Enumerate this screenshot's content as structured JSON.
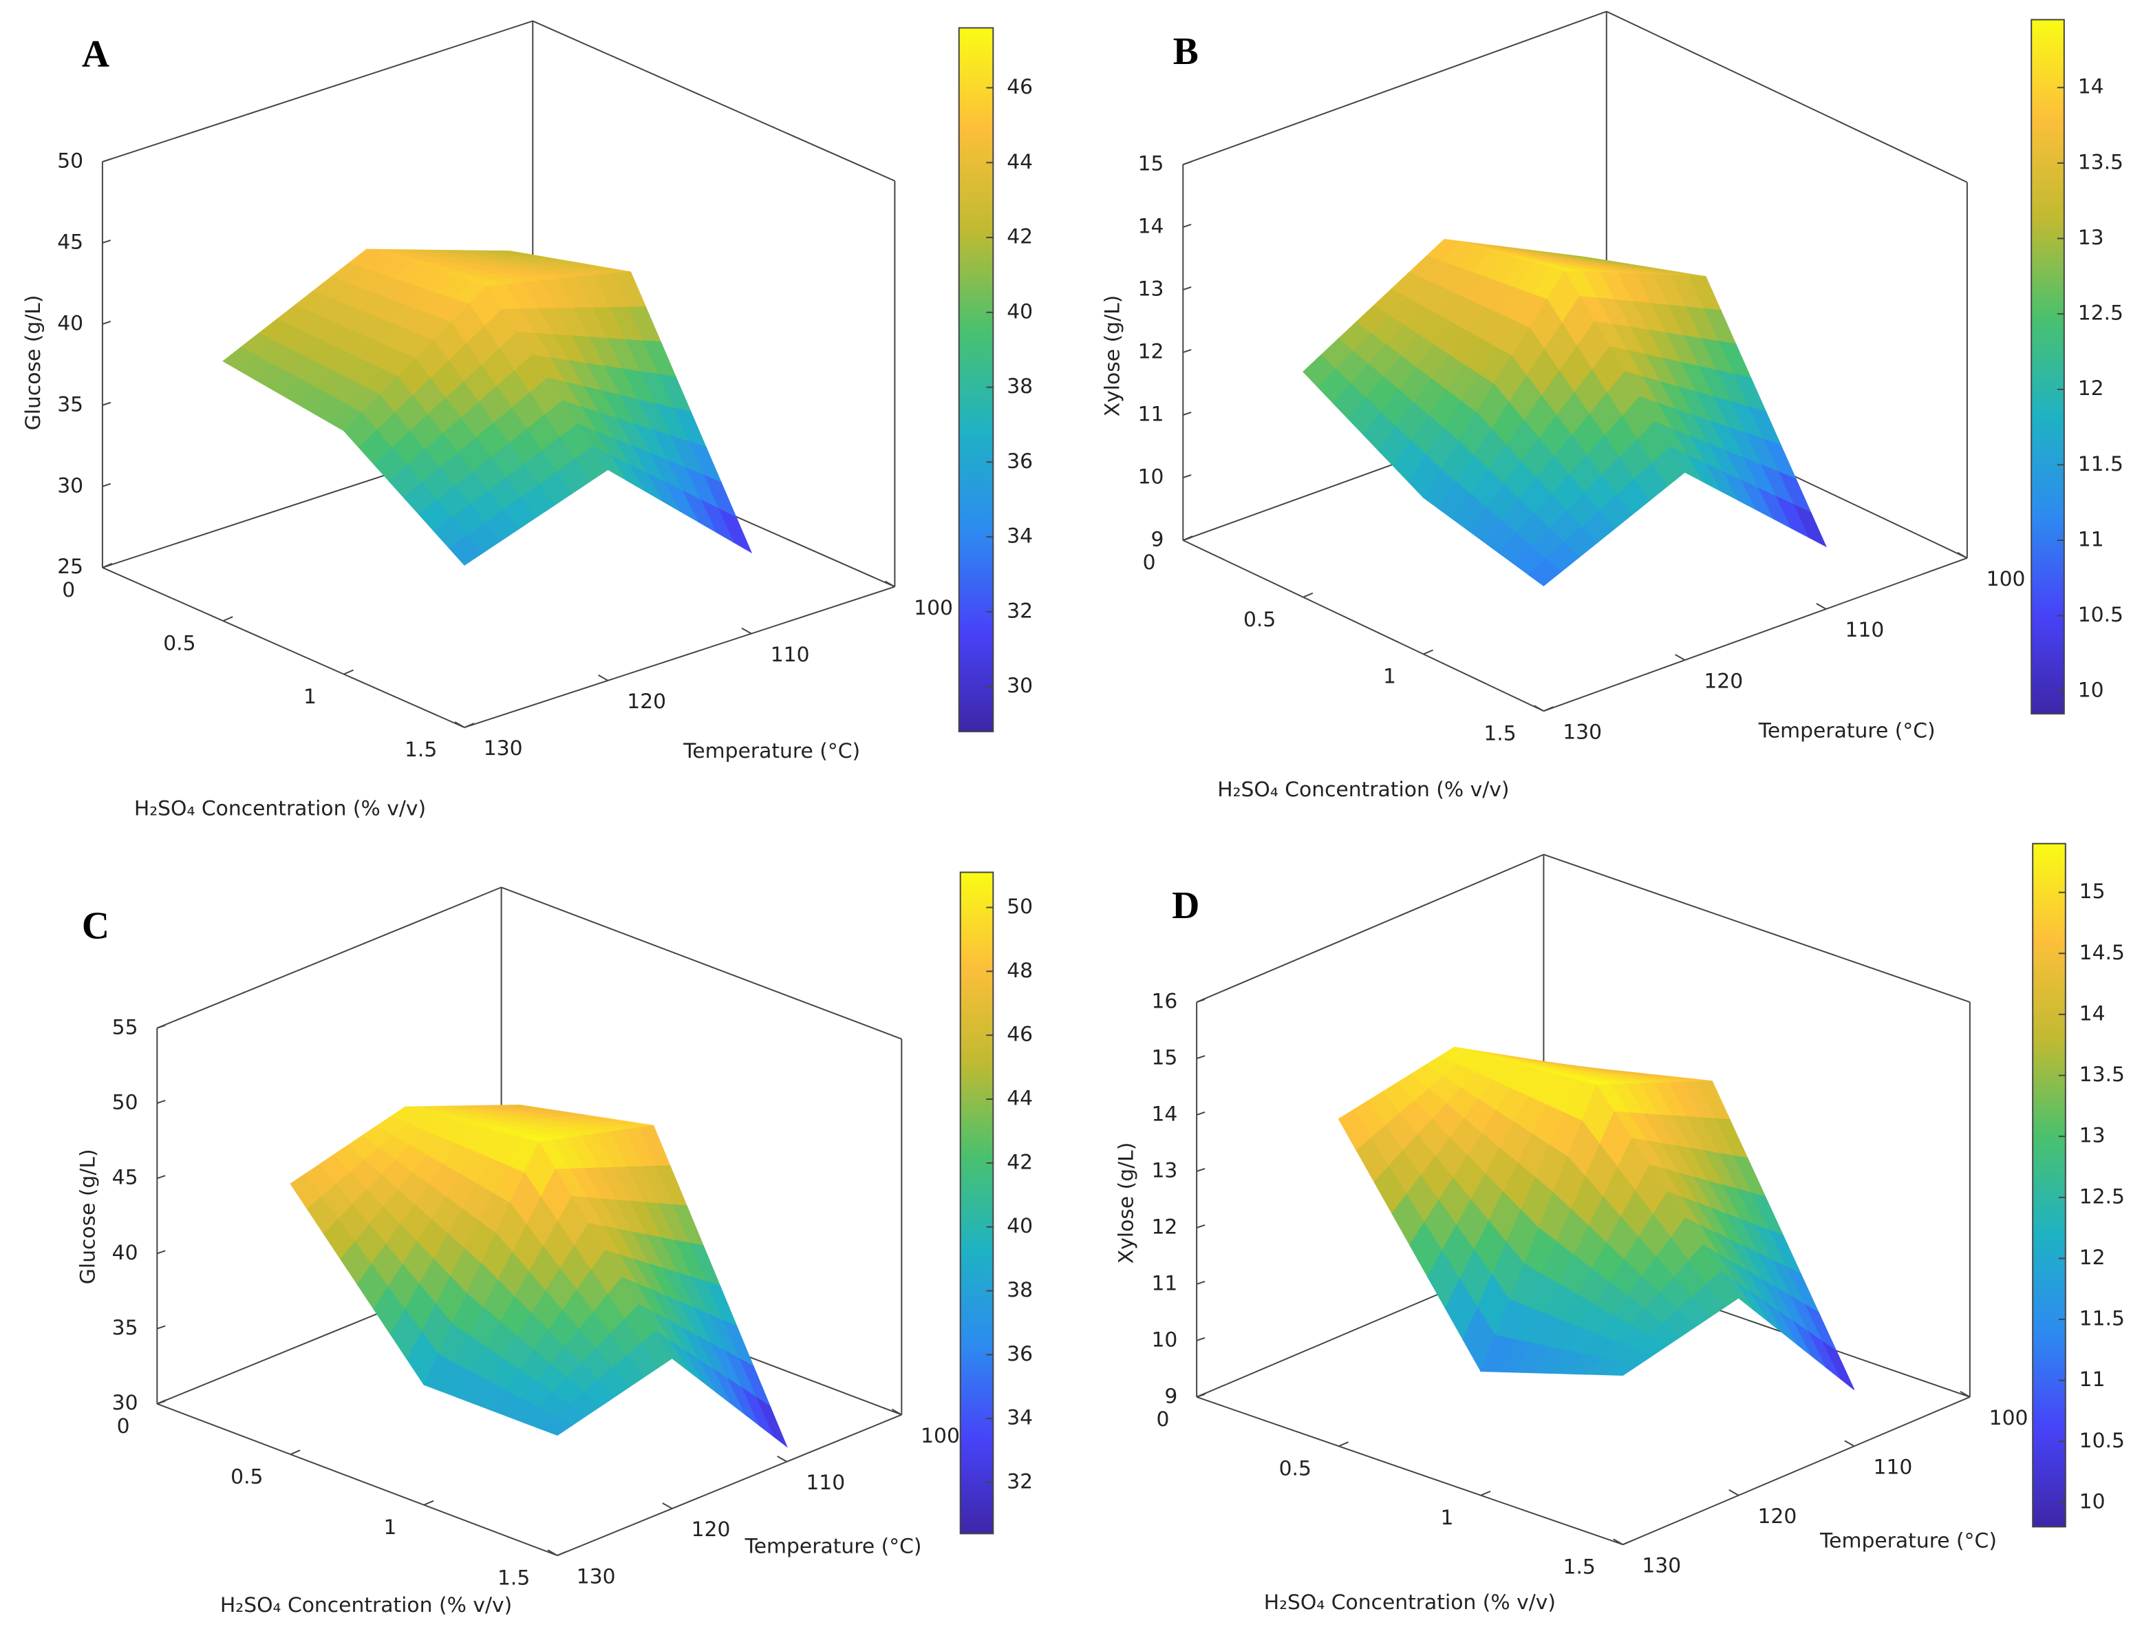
{
  "chart_data": [
    {
      "type": "surface",
      "panel_label": "A",
      "zlabel": "Glucose (g/L)",
      "ylabel": "Temperature (°C)",
      "xlabel": "H₂SO₄ Concentration (% v/v)",
      "x": [
        0.5,
        1,
        1.5
      ],
      "y": [
        110,
        120,
        130
      ],
      "z": [
        [
          42,
          45,
          41
        ],
        [
          44,
          46,
          40
        ],
        [
          30,
          38,
          35
        ]
      ],
      "xlim": [
        0,
        1.5
      ],
      "ylim": [
        100,
        130
      ],
      "zlim": [
        25,
        50
      ],
      "xticks": [
        0,
        0.5,
        1,
        1.5
      ],
      "yticks": [
        100,
        110,
        120,
        130
      ],
      "zticks": [
        25,
        30,
        35,
        40,
        45,
        50
      ],
      "clim": [
        28.8,
        47.6
      ],
      "cticks": [
        30,
        32,
        34,
        36,
        38,
        40,
        42,
        44,
        46
      ],
      "colormap": [
        "#3e26a8",
        "#4743f8",
        "#2d8bf0",
        "#1fb2c3",
        "#4ac16d",
        "#c1ba31",
        "#fcbf3a",
        "#f9fb15"
      ]
    },
    {
      "type": "surface",
      "panel_label": "B",
      "zlabel": "Xylose (g/L)",
      "ylabel": "Temperature (°C)",
      "xlabel": "H₂SO₄ Concentration (% v/v)",
      "x": [
        0.5,
        1,
        1.5
      ],
      "y": [
        110,
        120,
        130
      ],
      "z": [
        [
          12.8,
          13.9,
          12.6
        ],
        [
          13.4,
          14.3,
          11.5
        ],
        [
          10,
          12,
          11
        ]
      ],
      "xlim": [
        0,
        1.5
      ],
      "ylim": [
        100,
        130
      ],
      "zlim": [
        9,
        15
      ],
      "xticks": [
        0,
        0.5,
        1,
        1.5
      ],
      "yticks": [
        100,
        110,
        120,
        130
      ],
      "zticks": [
        9,
        10,
        11,
        12,
        13,
        14,
        15
      ],
      "clim": [
        9.85,
        14.45
      ],
      "cticks": [
        10,
        10.5,
        11,
        11.5,
        12,
        12.5,
        13,
        13.5,
        14
      ],
      "colormap": [
        "#3e26a8",
        "#4743f8",
        "#2d8bf0",
        "#1fb2c3",
        "#4ac16d",
        "#c1ba31",
        "#fcbf3a",
        "#f9fb15"
      ]
    },
    {
      "type": "surface",
      "panel_label": "C",
      "zlabel": "Glucose (g/L)",
      "ylabel": "Temperature (°C)",
      "xlabel": "H₂SO₄ Concentration (% v/v)",
      "x": [
        0.5,
        1,
        1.5
      ],
      "y": [
        110,
        120,
        130
      ],
      "z": [
        [
          47,
          50,
          48
        ],
        [
          49,
          51,
          38
        ],
        [
          31,
          40,
          38
        ]
      ],
      "xlim": [
        0,
        1.5
      ],
      "ylim": [
        100,
        130
      ],
      "zlim": [
        30,
        55
      ],
      "xticks": [
        0,
        0.5,
        1,
        1.5
      ],
      "yticks": [
        100,
        110,
        120,
        130
      ],
      "zticks": [
        30,
        35,
        40,
        45,
        50,
        55
      ],
      "clim": [
        30.4,
        51.1
      ],
      "cticks": [
        32,
        34,
        36,
        38,
        40,
        42,
        44,
        46,
        48,
        50
      ],
      "colormap": [
        "#3e26a8",
        "#4743f8",
        "#2d8bf0",
        "#1fb2c3",
        "#4ac16d",
        "#c1ba31",
        "#fcbf3a",
        "#f9fb15"
      ]
    },
    {
      "type": "surface",
      "panel_label": "D",
      "zlabel": "Xylose (g/L)",
      "ylabel": "Temperature (°C)",
      "xlabel": "H₂SO₄ Concentration (% v/v)",
      "x": [
        0.5,
        1,
        1.5
      ],
      "y": [
        110,
        120,
        130
      ],
      "z": [
        [
          14,
          15.2,
          14.8
        ],
        [
          14.6,
          15.4,
          11.2
        ],
        [
          10,
          12.5,
          12
        ]
      ],
      "xlim": [
        0,
        1.5
      ],
      "ylim": [
        100,
        130
      ],
      "zlim": [
        9,
        16
      ],
      "xticks": [
        0,
        0.5,
        1,
        1.5
      ],
      "yticks": [
        100,
        110,
        120,
        130
      ],
      "zticks": [
        9,
        10,
        11,
        12,
        13,
        14,
        15,
        16
      ],
      "clim": [
        9.8,
        15.4
      ],
      "cticks": [
        10,
        10.5,
        11,
        11.5,
        12,
        12.5,
        13,
        13.5,
        14,
        14.5,
        15
      ],
      "colormap": [
        "#3e26a8",
        "#4743f8",
        "#2d8bf0",
        "#1fb2c3",
        "#4ac16d",
        "#c1ba31",
        "#fcbf3a",
        "#f9fb15"
      ]
    }
  ]
}
